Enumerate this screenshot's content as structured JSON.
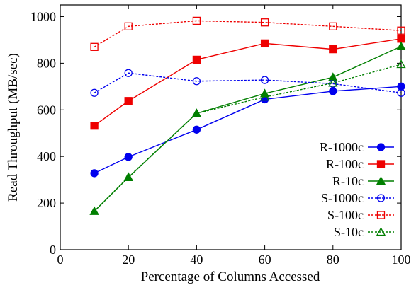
{
  "chart_data": {
    "type": "line",
    "title": "",
    "xlabel": "Percentage of Columns Accessed",
    "ylabel": "Read Throughput (MB/sec)",
    "xlim": [
      0,
      100
    ],
    "ylim": [
      0,
      1050
    ],
    "xticks": [
      0,
      20,
      40,
      60,
      80,
      100
    ],
    "yticks": [
      0,
      200,
      400,
      600,
      800,
      1000
    ],
    "xtick_labels": [
      "0",
      "20",
      "40",
      "60",
      "80",
      "100"
    ],
    "ytick_labels": [
      "0",
      "200",
      "400",
      "600",
      "800",
      "1000"
    ],
    "grid": false,
    "legend_position": "bottom-right",
    "x": [
      10,
      20,
      40,
      60,
      80,
      100
    ],
    "series": [
      {
        "name": "R-1000c",
        "values": [
          328,
          398,
          515,
          645,
          680,
          700
        ],
        "color": "#0000ee",
        "marker": "circle-filled",
        "dash": "solid"
      },
      {
        "name": "R-100c",
        "values": [
          532,
          638,
          815,
          885,
          860,
          905
        ],
        "color": "#ee0000",
        "marker": "square-filled",
        "dash": "solid"
      },
      {
        "name": "R-10c",
        "values": [
          165,
          310,
          585,
          670,
          740,
          872
        ],
        "color": "#007f00",
        "marker": "triangle-filled",
        "dash": "solid"
      },
      {
        "name": "S-1000c",
        "values": [
          673,
          758,
          723,
          728,
          712,
          673
        ],
        "color": "#0000ee",
        "marker": "circle-open",
        "dash": "dashed"
      },
      {
        "name": "S-100c",
        "values": [
          870,
          958,
          982,
          975,
          958,
          940
        ],
        "color": "#ee0000",
        "marker": "square-open",
        "dash": "dashed"
      },
      {
        "name": "S-10c",
        "values": [
          165,
          312,
          585,
          655,
          715,
          795
        ],
        "color": "#007f00",
        "marker": "triangle-open",
        "dash": "dashed"
      }
    ]
  }
}
